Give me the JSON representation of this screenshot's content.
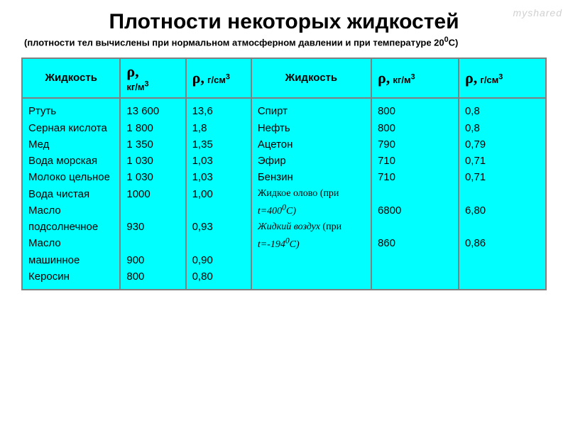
{
  "title": "Плотности некоторых жидкостей",
  "subtitle_pre": "(плотности тел вычислены при нормальном атмосферном давлении и при температуре 20",
  "subtitle_sup": "0",
  "subtitle_post": "С)",
  "watermark": "myshared",
  "headers": {
    "liquid": "Жидкость",
    "rho_sym": "ρ,",
    "kg_m3": "кг/м",
    "g_cm3": "г/см",
    "sup3": "3"
  },
  "colors": {
    "cell_bg": "#00ffff",
    "border": "#808080",
    "text": "#000000"
  },
  "left": {
    "liquids": [
      "Ртуть",
      "Серная кислота",
      "Мед",
      "Вода морская",
      "Молоко цельное",
      "Вода чистая",
      "Масло подсолнечное",
      "Масло машинное",
      "Керосин"
    ],
    "kg_m3": [
      "13 600",
      "1 800",
      "1 350",
      "1 030",
      "1 030",
      "1000",
      "",
      "930",
      "",
      "900",
      "800"
    ],
    "g_cm3": [
      "13,6",
      "1,8",
      "1,35",
      "1,03",
      "1,03",
      "1,00",
      "",
      "0,93",
      "",
      "0,90",
      "0,80"
    ]
  },
  "right": {
    "liquids_plain": [
      "Спирт",
      "Нефть",
      "Ацетон",
      "Эфир",
      "Бензин"
    ],
    "special1_pre": "Жидкое олово (при ",
    "special1_t": "t=400",
    "special1_sup": "0",
    "special1_post": "С)",
    "special2_pre": "Жидкий воздух ",
    "special2_mid": "(при ",
    "special2_t": "t=-194",
    "special2_sup": "0",
    "special2_post": "С)",
    "kg_m3": [
      "800",
      "800",
      "790",
      "710",
      "710",
      "",
      "6800",
      "",
      "860"
    ],
    "g_cm3": [
      "0,8",
      "0,8",
      "0,79",
      "0,71",
      "0,71",
      "",
      "6,80",
      "",
      "0,86"
    ]
  }
}
